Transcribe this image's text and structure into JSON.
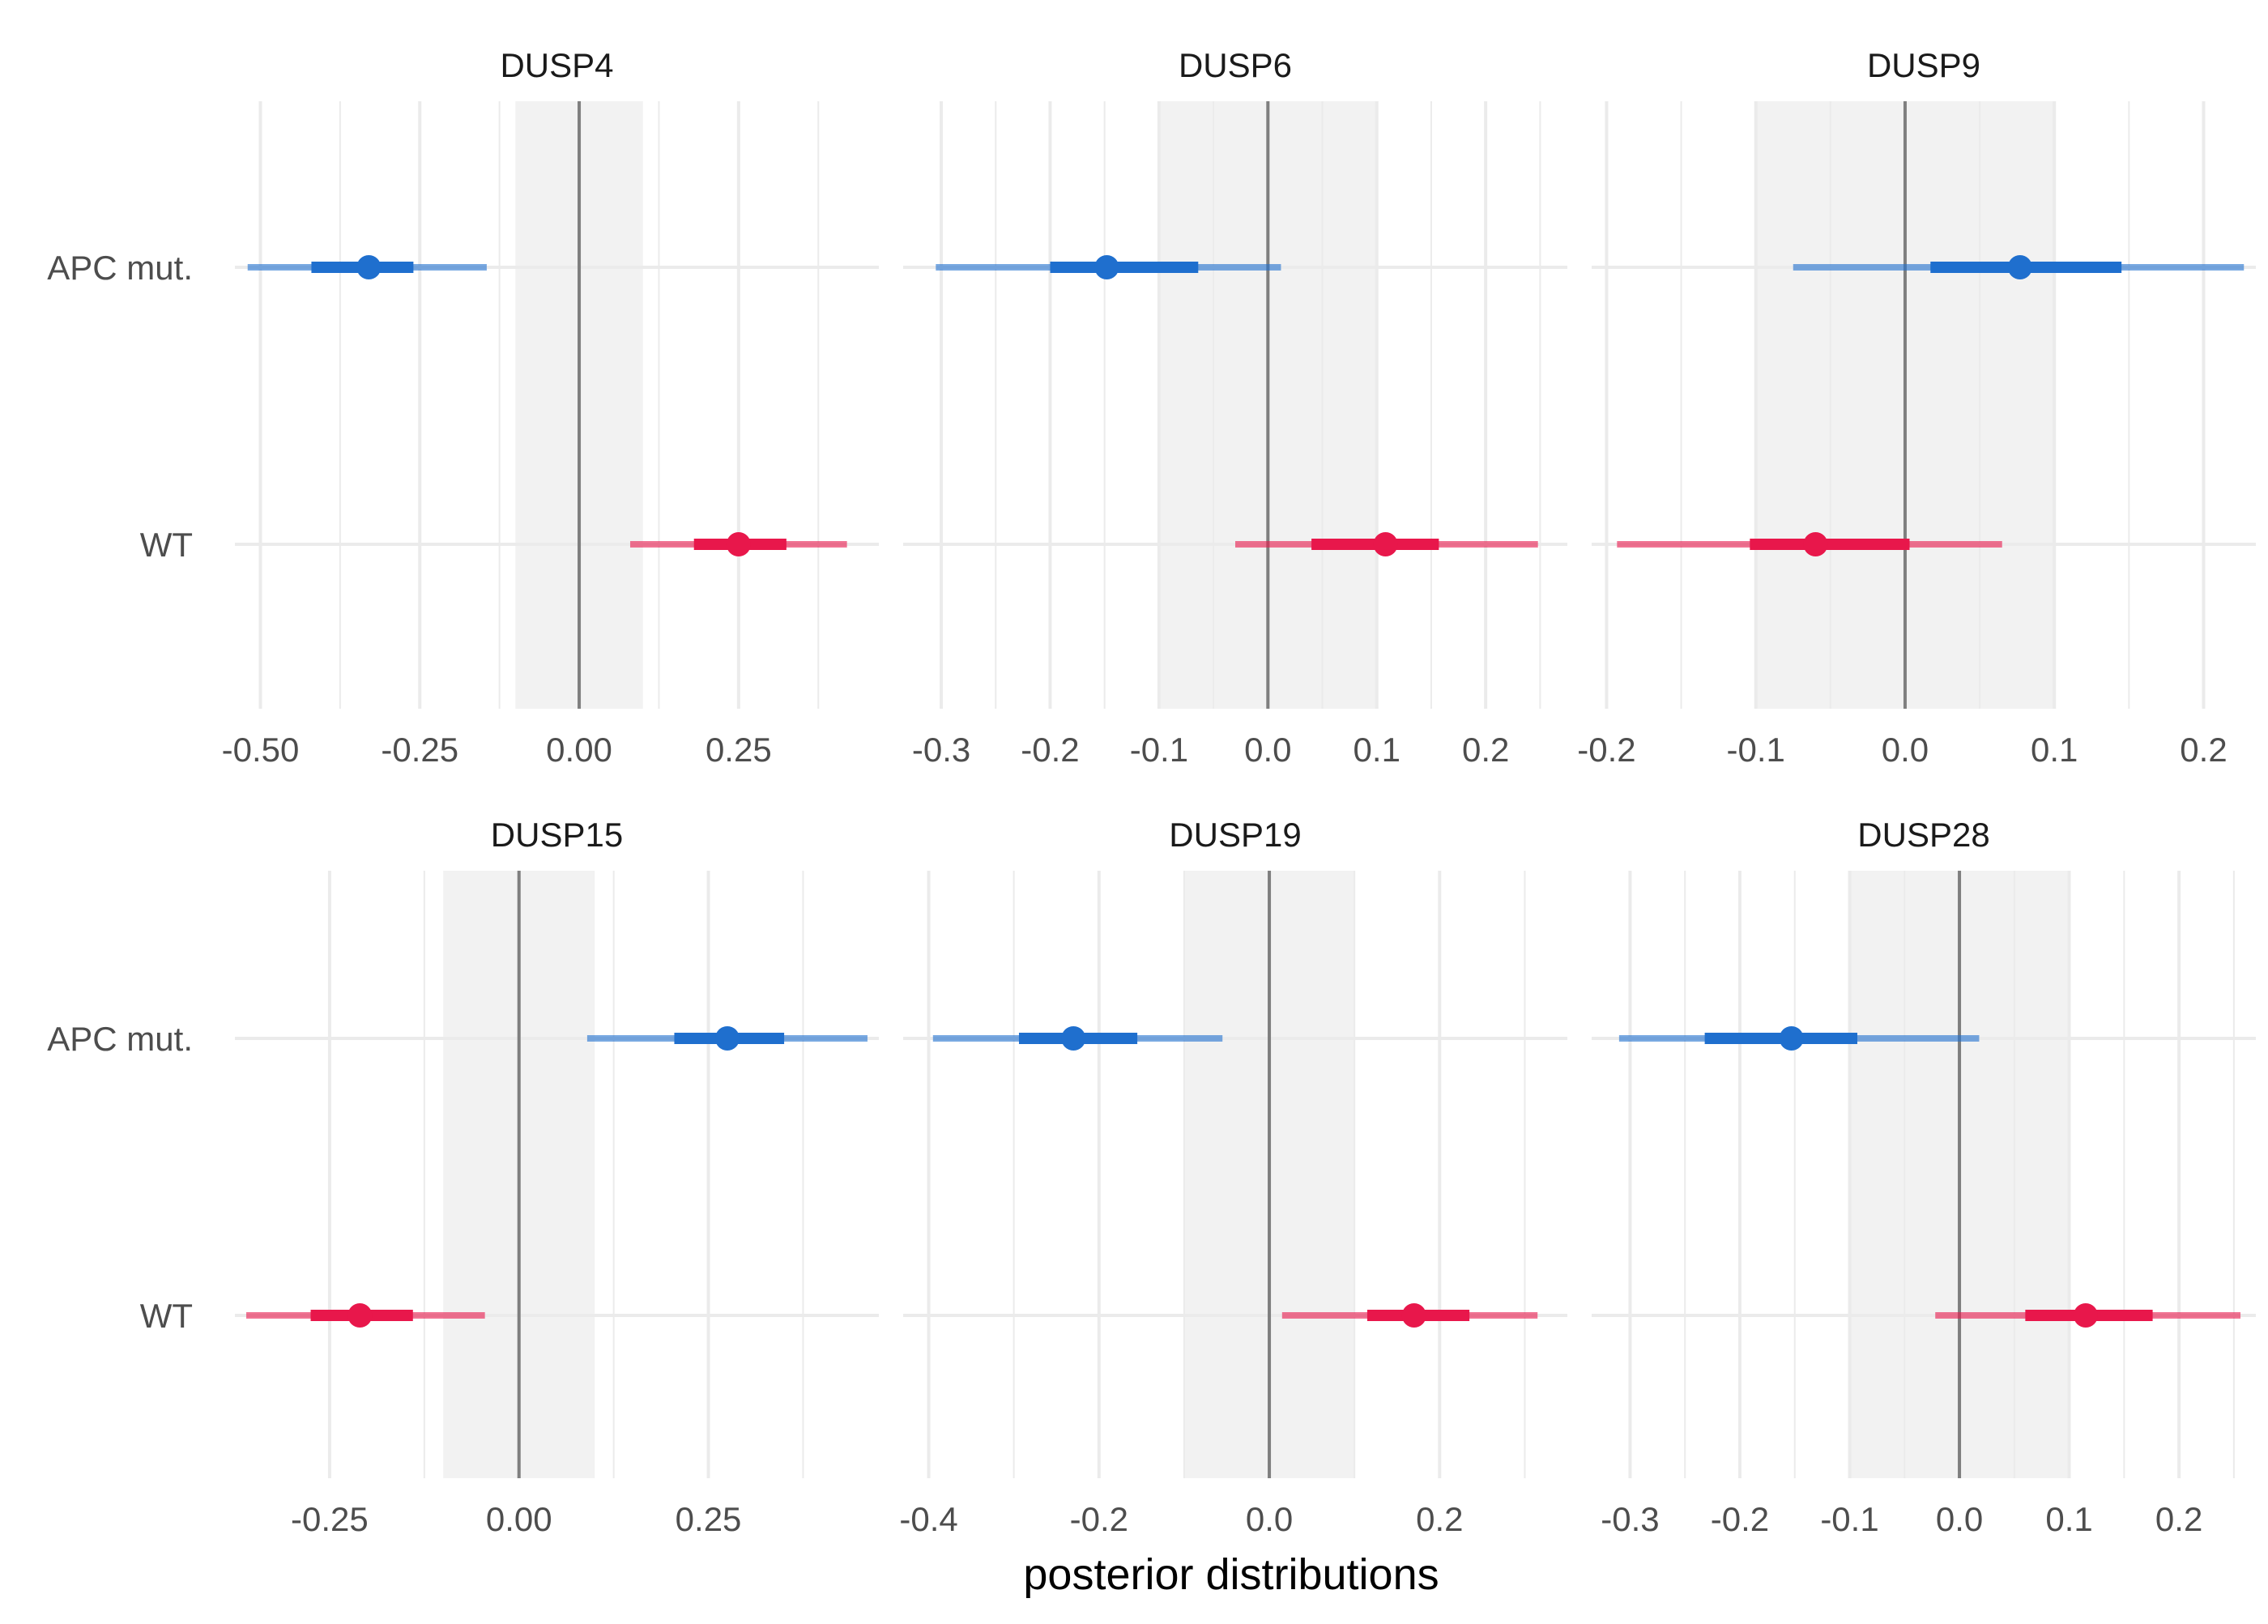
{
  "chart_data": {
    "type": "interval",
    "xlabel": "posterior distributions",
    "ylabel": "",
    "categories": [
      "APC mut.",
      "WT"
    ],
    "rope": [
      -0.1,
      0.1
    ],
    "colors": {
      "APC mut.": "#1f6fce",
      "WT": "#e8174b",
      "rope_fill": "#f2f2f2",
      "grid": "#ebebeb",
      "zero_line": "#7f7f7f"
    },
    "intervals": "point = median; thick bar = inner credible interval; thin bar = outer credible interval",
    "panels": [
      {
        "title": "DUSP4",
        "xlim": [
          -0.54,
          0.47
        ],
        "xticks": [
          -0.5,
          -0.25,
          0.0,
          0.25
        ],
        "xtick_labels": [
          "-0.50",
          "-0.25",
          "0.00",
          "0.25"
        ],
        "series": [
          {
            "name": "APC mut.",
            "median": -0.33,
            "inner": [
              -0.42,
              -0.26
            ],
            "outer": [
              -0.52,
              -0.145
            ]
          },
          {
            "name": "WT",
            "median": 0.25,
            "inner": [
              0.18,
              0.325
            ],
            "outer": [
              0.08,
              0.42
            ]
          }
        ]
      },
      {
        "title": "DUSP6",
        "xlim": [
          -0.335,
          0.275
        ],
        "xticks": [
          -0.3,
          -0.2,
          -0.1,
          0.0,
          0.1,
          0.2
        ],
        "xtick_labels": [
          "-0.3",
          "-0.2",
          "-0.1",
          "0.0",
          "0.1",
          "0.2"
        ],
        "series": [
          {
            "name": "APC mut.",
            "median": -0.148,
            "inner": [
              -0.2,
              -0.064
            ],
            "outer": [
              -0.305,
              0.012
            ]
          },
          {
            "name": "WT",
            "median": 0.108,
            "inner": [
              0.04,
              0.157
            ],
            "outer": [
              -0.03,
              0.248
            ]
          }
        ]
      },
      {
        "title": "DUSP9",
        "xlim": [
          -0.21,
          0.235
        ],
        "xticks": [
          -0.2,
          -0.1,
          0.0,
          0.1,
          0.2
        ],
        "xtick_labels": [
          "-0.2",
          "-0.1",
          "0.0",
          "0.1",
          "0.2"
        ],
        "series": [
          {
            "name": "APC mut.",
            "median": 0.077,
            "inner": [
              0.017,
              0.145
            ],
            "outer": [
              -0.075,
              0.227
            ]
          },
          {
            "name": "WT",
            "median": -0.06,
            "inner": [
              -0.104,
              0.003
            ],
            "outer": [
              -0.193,
              0.065
            ]
          }
        ]
      },
      {
        "title": "DUSP15",
        "xlim": [
          -0.375,
          0.475
        ],
        "xticks": [
          -0.25,
          0.0,
          0.25
        ],
        "xtick_labels": [
          "-0.25",
          "0.00",
          "0.25"
        ],
        "series": [
          {
            "name": "APC mut.",
            "median": 0.275,
            "inner": [
              0.205,
              0.35
            ],
            "outer": [
              0.09,
              0.46
            ]
          },
          {
            "name": "WT",
            "median": -0.21,
            "inner": [
              -0.275,
              -0.14
            ],
            "outer": [
              -0.36,
              -0.045
            ]
          }
        ]
      },
      {
        "title": "DUSP19",
        "xlim": [
          -0.43,
          0.35
        ],
        "xticks": [
          -0.4,
          -0.2,
          0.0,
          0.2
        ],
        "xtick_labels": [
          "-0.4",
          "-0.2",
          "0.0",
          "0.2"
        ],
        "series": [
          {
            "name": "APC mut.",
            "median": -0.23,
            "inner": [
              -0.294,
              -0.155
            ],
            "outer": [
              -0.395,
              -0.055
            ]
          },
          {
            "name": "WT",
            "median": 0.17,
            "inner": [
              0.115,
              0.235
            ],
            "outer": [
              0.015,
              0.315
            ]
          }
        ]
      },
      {
        "title": "DUSP28",
        "xlim": [
          -0.335,
          0.27
        ],
        "xticks": [
          -0.3,
          -0.2,
          -0.1,
          0.0,
          0.1,
          0.2
        ],
        "xtick_labels": [
          "-0.3",
          "-0.2",
          "-0.1",
          "0.0",
          "0.1",
          "0.2"
        ],
        "series": [
          {
            "name": "APC mut.",
            "median": -0.153,
            "inner": [
              -0.232,
              -0.093
            ],
            "outer": [
              -0.31,
              0.018
            ]
          },
          {
            "name": "WT",
            "median": 0.115,
            "inner": [
              0.06,
              0.176
            ],
            "outer": [
              -0.022,
              0.256
            ]
          }
        ]
      }
    ]
  }
}
